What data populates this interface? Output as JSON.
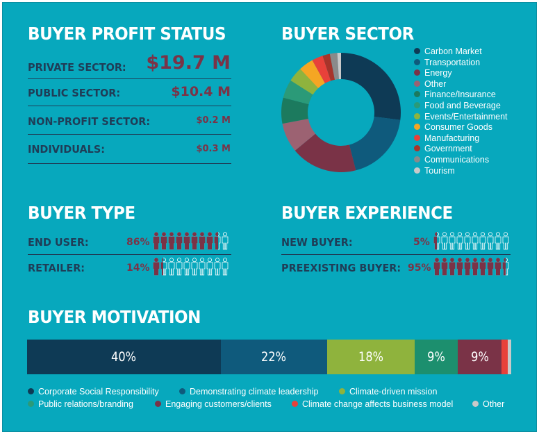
{
  "profit": {
    "title": "BUYER PROFIT STATUS",
    "rows": [
      {
        "label": "PRIVATE SECTOR:",
        "value": "$19.7 M"
      },
      {
        "label": "PUBLIC SECTOR:",
        "value": "$10.4 M"
      },
      {
        "label": "NON-PROFIT SECTOR:",
        "value": "$0.2 M"
      },
      {
        "label": "INDIVIDUALS:",
        "value": "$0.3 M"
      }
    ]
  },
  "colors": {
    "background": "#07a8bd",
    "dark_text": "#1f3d57",
    "accent": "#7a3347",
    "person_outline": "#ffffff"
  },
  "buyer_type": {
    "title": "BUYER TYPE",
    "rows": [
      {
        "label": "END USER:",
        "percent": "86%",
        "filled": 8.6
      },
      {
        "label": "RETAILER:",
        "percent": "14%",
        "filled": 1.4
      }
    ]
  },
  "buyer_experience": {
    "title": "BUYER EXPERIENCE",
    "rows": [
      {
        "label": "NEW BUYER:",
        "percent": "5%",
        "filled": 0.5
      },
      {
        "label": "PREEXISTING BUYER:",
        "percent": "95%",
        "filled": 9.5
      }
    ]
  },
  "chart_data": [
    {
      "type": "pie",
      "donut": true,
      "title": "BUYER SECTOR",
      "legend": "right",
      "slices": [
        {
          "name": "Carbon Market",
          "value": 27,
          "color": "#0e3a55"
        },
        {
          "name": "Transportation",
          "value": 19,
          "color": "#0f5a7c"
        },
        {
          "name": "Energy",
          "value": 18,
          "color": "#7a3347"
        },
        {
          "name": "Other",
          "value": 8,
          "color": "#9c6272"
        },
        {
          "name": "Finance/Insurance",
          "value": 7,
          "color": "#1c7a5e"
        },
        {
          "name": "Food and Beverage",
          "value": 5,
          "color": "#2b9a78"
        },
        {
          "name": "Events/Entertainment",
          "value": 4,
          "color": "#8fb33d"
        },
        {
          "name": "Consumer Goods",
          "value": 4,
          "color": "#f5a623"
        },
        {
          "name": "Manufacturing",
          "value": 3,
          "color": "#e8413a"
        },
        {
          "name": "Government",
          "value": 2,
          "color": "#a8342a"
        },
        {
          "name": "Communications",
          "value": 2,
          "color": "#8a8a8a"
        },
        {
          "name": "Tourism",
          "value": 1,
          "color": "#c9c9c9"
        }
      ]
    },
    {
      "type": "bar",
      "stacked": true,
      "orientation": "horizontal",
      "title": "BUYER MOTIVATION",
      "series": [
        {
          "name": "Corporate Social Responsibility",
          "value": 40,
          "label": "40%",
          "color": "#0e3a55",
          "legend_color": "#0e3a55"
        },
        {
          "name": "Demonstrating climate leadership",
          "value": 22,
          "label": "22%",
          "color": "#0f5a7c",
          "legend_color": "#0f5a7c"
        },
        {
          "name": "Climate-driven mission",
          "value": 18,
          "label": "18%",
          "color": "#8fb33d",
          "legend_color": "#8fb33d"
        },
        {
          "name": "Public relations/branding",
          "value": 9,
          "label": "9%",
          "color": "#1c8f6e",
          "legend_color": "#2b9a78"
        },
        {
          "name": "Engaging customers/clients",
          "value": 9,
          "label": "9%",
          "color": "#7a3347",
          "legend_color": "#7a3347"
        },
        {
          "name": "Climate change affects business model",
          "value": 1.3,
          "label": "",
          "color": "#e8413a",
          "legend_color": "#e8413a"
        },
        {
          "name": "Other",
          "value": 0.7,
          "label": "",
          "color": "#c9c9c9",
          "legend_color": "#c9c9c9"
        }
      ]
    }
  ]
}
